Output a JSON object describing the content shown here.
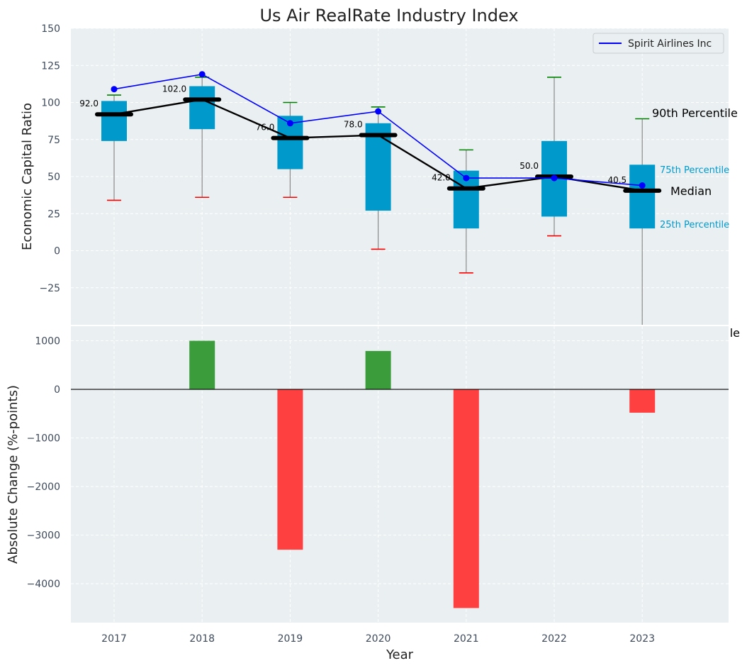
{
  "chart_data": [
    {
      "type": "box",
      "title": "Us Air RealRate Industry Index",
      "ylabel": "Economic Capital Ratio",
      "ylim": [
        -50,
        150
      ],
      "yticks": [
        -25,
        0,
        25,
        50,
        75,
        100,
        125,
        150
      ],
      "categories": [
        "2017",
        "2018",
        "2019",
        "2020",
        "2021",
        "2022",
        "2023"
      ],
      "boxes": [
        {
          "year": "2017",
          "p10": 34,
          "p25": 74,
          "median": 92,
          "p75": 101,
          "p90": 105,
          "median_label": "92.0"
        },
        {
          "year": "2018",
          "p10": 36,
          "p25": 82,
          "median": 102,
          "p75": 111,
          "p90": 117,
          "median_label": "102.0"
        },
        {
          "year": "2019",
          "p10": 36,
          "p25": 55,
          "median": 76,
          "p75": 91,
          "p90": 100,
          "median_label": "76.0"
        },
        {
          "year": "2020",
          "p10": 1,
          "p25": 27,
          "median": 78,
          "p75": 86,
          "p90": 97,
          "median_label": "78.0"
        },
        {
          "year": "2021",
          "p10": -15,
          "p25": 15,
          "median": 42,
          "p75": 54,
          "p90": 68,
          "median_label": "42.0"
        },
        {
          "year": "2022",
          "p10": 10,
          "p25": 23,
          "median": 50,
          "p75": 74,
          "p90": 117,
          "median_label": "50.0"
        },
        {
          "year": "2023",
          "p10": null,
          "p25": 15,
          "median": 40.5,
          "p75": 58,
          "p90": 89,
          "median_label": "40.5"
        }
      ],
      "series": [
        {
          "name": "Spirit Airlines Inc",
          "color": "#0000ff",
          "values": [
            109,
            119,
            86,
            94,
            49,
            49,
            44
          ]
        }
      ],
      "legend": {
        "position": "top-right",
        "entries": [
          "Spirit Airlines Inc"
        ]
      },
      "annotations": {
        "p90": "90th Percentile",
        "p75": "75th Percentile",
        "median": "Median",
        "p25": "25th Percentile",
        "p10_fragment": "le"
      },
      "colors": {
        "box": "#0099cc",
        "median": "#000000",
        "p90_cap": "#008000",
        "p10_cap": "#ff0000",
        "background": "#eaeff1"
      },
      "grid": true
    },
    {
      "type": "bar",
      "xlabel": "Year",
      "ylabel": "Absolute Change (%-points)",
      "ylim": [
        -4800,
        1300
      ],
      "yticks": [
        -4000,
        -3000,
        -2000,
        -1000,
        0,
        1000
      ],
      "categories": [
        "2017",
        "2018",
        "2019",
        "2020",
        "2021",
        "2022",
        "2023"
      ],
      "values": [
        0,
        1000,
        -3300,
        790,
        -4500,
        0,
        -480
      ],
      "colors": {
        "positive": "#3a9c3a",
        "negative": "#ff4040"
      },
      "grid": true
    }
  ]
}
